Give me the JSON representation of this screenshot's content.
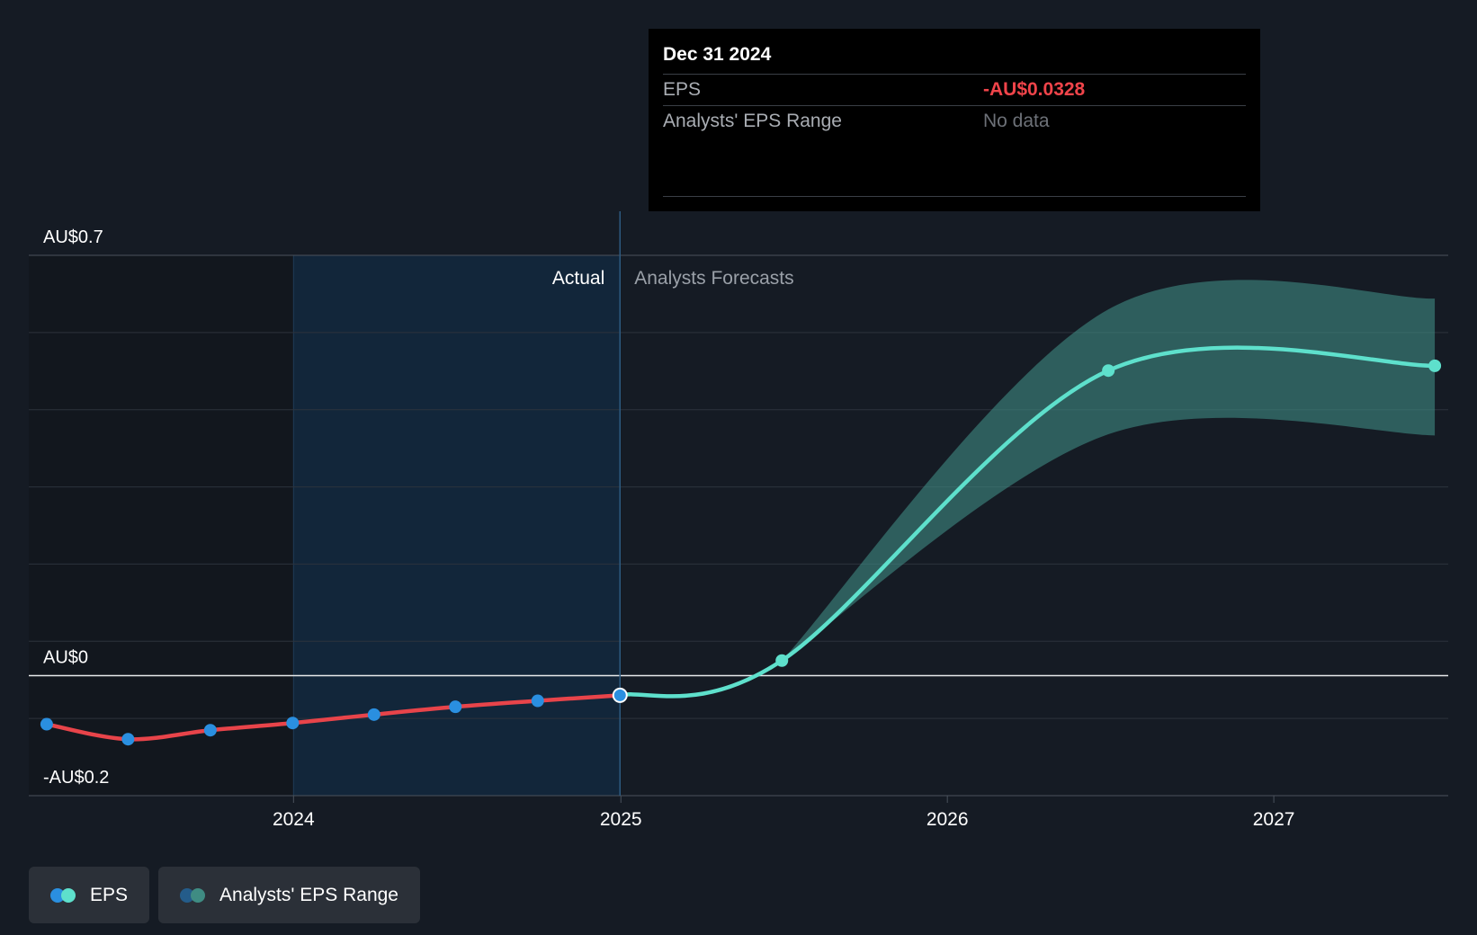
{
  "chart_data": {
    "type": "line",
    "y_tick_labels": [
      {
        "value": 0.7,
        "label": "AU$0.7"
      },
      {
        "value": 0,
        "label": "AU$0"
      },
      {
        "value": -0.2,
        "label": "-AU$0.2"
      }
    ],
    "ylim": [
      -0.2,
      0.7
    ],
    "xlim": [
      "2023-03-11",
      "2027-07-15"
    ],
    "x_ticks": [
      {
        "value": "2024-01-01",
        "label": "2024"
      },
      {
        "value": "2025-01-01",
        "label": "2025"
      },
      {
        "value": "2026-01-01",
        "label": "2026"
      },
      {
        "value": "2027-01-01",
        "label": "2027"
      }
    ],
    "grid": "horizontal",
    "regions": {
      "actual_label": "Actual",
      "forecast_label": "Analysts Forecasts",
      "highlight_start": "2024-01-01",
      "divider": "2024-12-31"
    },
    "series": [
      {
        "name": "EPS",
        "kind": "actual",
        "color": "#e8444a",
        "marker_color": "#2a8fe0",
        "points": [
          {
            "x": "2023-03-31",
            "y": -0.081
          },
          {
            "x": "2023-06-30",
            "y": -0.106
          },
          {
            "x": "2023-09-30",
            "y": -0.091
          },
          {
            "x": "2023-12-31",
            "y": -0.079
          },
          {
            "x": "2024-03-31",
            "y": -0.065
          },
          {
            "x": "2024-06-30",
            "y": -0.052
          },
          {
            "x": "2024-09-30",
            "y": -0.042
          },
          {
            "x": "2024-12-31",
            "y": -0.0328
          }
        ]
      },
      {
        "name": "EPS",
        "kind": "forecast",
        "color": "#5ee0cc",
        "points": [
          {
            "x": "2024-12-31",
            "y": -0.0328
          },
          {
            "x": "2025-06-30",
            "y": 0.025
          },
          {
            "x": "2026-06-30",
            "y": 0.508
          },
          {
            "x": "2027-06-30",
            "y": 0.516
          }
        ]
      }
    ],
    "range_band": {
      "name": "Analysts' EPS Range",
      "color": "#3f8c83",
      "x": [
        "2025-06-30",
        "2026-06-30",
        "2027-06-30"
      ],
      "low": [
        0.025,
        0.402,
        0.4
      ],
      "high": [
        0.025,
        0.61,
        0.628
      ]
    },
    "highlighted_point": {
      "x": "2024-12-31",
      "y": -0.0328
    }
  },
  "tooltip": {
    "date": "Dec 31 2024",
    "eps_label": "EPS",
    "eps_value": "-AU$0.0328",
    "range_label": "Analysts' EPS Range",
    "range_value": "No data"
  },
  "legend": {
    "eps": {
      "label": "EPS",
      "colors": [
        "#2a8fe0",
        "#5ee0cc"
      ]
    },
    "range": {
      "label": "Analysts' EPS Range",
      "colors": [
        "#245c8a",
        "#3f8c83"
      ]
    }
  }
}
